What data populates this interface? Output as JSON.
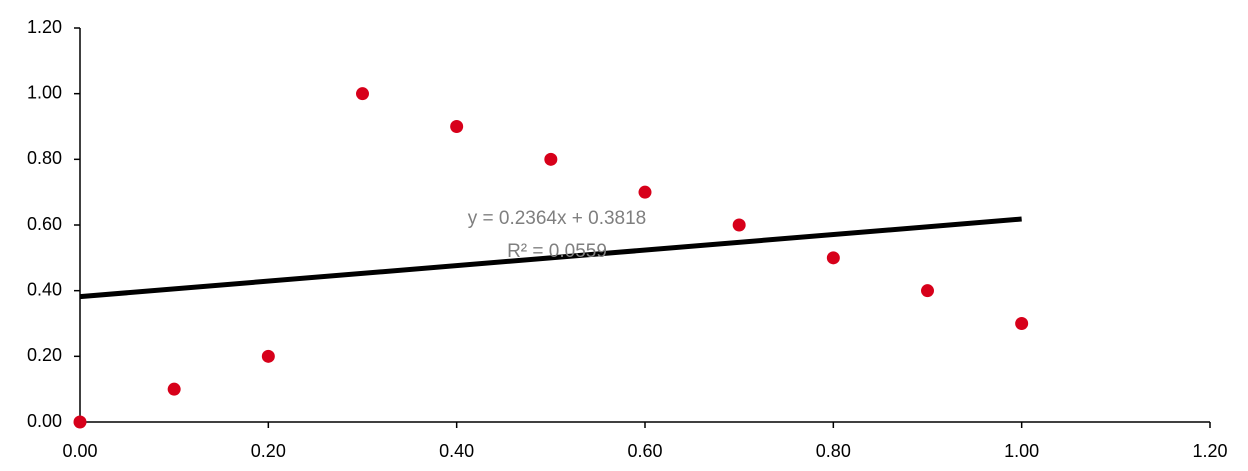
{
  "chart_data": {
    "type": "scatter",
    "x": [
      0,
      0.1,
      0.2,
      0.3,
      0.4,
      0.5,
      0.6,
      0.7,
      0.8,
      0.9,
      1.0
    ],
    "values": [
      0,
      0.1,
      0.2,
      1.0,
      0.9,
      0.8,
      0.7,
      0.6,
      0.5,
      0.4,
      0.3
    ],
    "color": "#d7001a",
    "xlim": [
      0,
      1.2
    ],
    "ylim": [
      0,
      1.2
    ],
    "xticks": [
      {
        "value": 0,
        "label": "0.00"
      },
      {
        "value": 0.2,
        "label": "0.20"
      },
      {
        "value": 0.4,
        "label": "0.40"
      },
      {
        "value": 0.6,
        "label": "0.60"
      },
      {
        "value": 0.8,
        "label": "0.80"
      },
      {
        "value": 1.0,
        "label": "1.00"
      },
      {
        "value": 1.2,
        "label": "1.20"
      }
    ],
    "yticks": [
      {
        "value": 0,
        "label": "0.00"
      },
      {
        "value": 0.2,
        "label": "0.20"
      },
      {
        "value": 0.4,
        "label": "0.40"
      },
      {
        "value": 0.6,
        "label": "0.60"
      },
      {
        "value": 0.8,
        "label": "0.80"
      },
      {
        "value": 1.0,
        "label": "1.00"
      },
      {
        "value": 1.2,
        "label": "1.20"
      }
    ],
    "grid": false,
    "trendline": {
      "equation": "y = 0.2364x + 0.3818",
      "r_squared": "R² = 0.0559",
      "slope": 0.2364,
      "intercept": 0.3818,
      "x": [
        0,
        1.0
      ],
      "color": "#000000"
    }
  }
}
